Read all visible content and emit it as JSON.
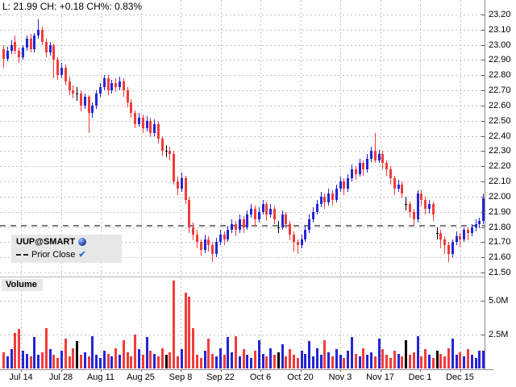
{
  "quote": {
    "text": "L: 21.99 CH: +0.18 CH%: 0.83%"
  },
  "legend": {
    "symbol": "UUP@SMART",
    "globe_icon": "globe-icon",
    "prior_close_label": "Prior Close",
    "checkmark": "✔"
  },
  "volume_label": "Volume",
  "colors": {
    "up": "#2326d6",
    "down": "#f23c3a",
    "neutral": "#000000",
    "grid": "#c4c4c4",
    "prior_close_line": "#7a7a7a",
    "axis": "#8c8c8c",
    "legend_bg": "#e7e7e7",
    "text": "#000000"
  },
  "chart_data": {
    "type": "candlestick_with_volume",
    "symbol": "UUP@SMART",
    "last": 21.99,
    "change": 0.18,
    "change_pct": 0.83,
    "prior_close": 21.81,
    "price_axis_ticks": [
      "23.20",
      "23.10",
      "23.00",
      "22.90",
      "22.80",
      "22.70",
      "22.60",
      "22.50",
      "22.40",
      "22.30",
      "22.20",
      "22.10",
      "22.00",
      "21.90",
      "21.80",
      "21.70",
      "21.60",
      "21.50"
    ],
    "price_ylim": [
      21.5,
      23.2
    ],
    "volume_axis_ticks": [
      "5.0M",
      "2.5M"
    ],
    "volume_tick_values": [
      5.0,
      2.5
    ],
    "date_ticks": [
      "Jul 14",
      "Jul 28",
      "Aug 11",
      "Aug 25",
      "Sep 8",
      "Sep 22",
      "Oct 6",
      "Oct 20",
      "Nov 3",
      "Nov 17",
      "Dec 1",
      "Dec 15"
    ],
    "grid": true,
    "legend_position": "left-inside",
    "candles_note": "array of [open, high, low, close, volume_millions] per trading day, Jul-Dec",
    "candles": [
      [
        22.97,
        23.0,
        22.85,
        22.91,
        1.2
      ],
      [
        22.91,
        22.99,
        22.89,
        22.96,
        0.9
      ],
      [
        22.96,
        23.03,
        22.94,
        23.0,
        1.4
      ],
      [
        23.02,
        23.06,
        22.94,
        22.96,
        2.6
      ],
      [
        22.96,
        22.98,
        22.88,
        22.92,
        2.9
      ],
      [
        22.92,
        23.0,
        22.9,
        22.98,
        1.3
      ],
      [
        22.98,
        23.06,
        22.96,
        23.04,
        1.1
      ],
      [
        23.04,
        23.07,
        22.95,
        22.97,
        0.9
      ],
      [
        22.97,
        23.08,
        22.95,
        23.06,
        2.3
      ],
      [
        23.06,
        23.17,
        23.04,
        23.1,
        1.0
      ],
      [
        23.1,
        23.12,
        23.0,
        23.02,
        1.2
      ],
      [
        23.02,
        23.04,
        22.92,
        22.95,
        3.0
      ],
      [
        22.95,
        23.02,
        22.93,
        23.0,
        1.4
      ],
      [
        23.0,
        23.01,
        22.78,
        22.9,
        1.0
      ],
      [
        22.9,
        22.92,
        22.77,
        22.8,
        0.8
      ],
      [
        22.8,
        22.88,
        22.78,
        22.85,
        1.3
      ],
      [
        22.85,
        22.87,
        22.73,
        22.76,
        2.2
      ],
      [
        22.76,
        22.79,
        22.67,
        22.7,
        0.9
      ],
      [
        22.7,
        22.73,
        22.65,
        22.68,
        1.5
      ],
      [
        22.68,
        22.72,
        22.63,
        22.68,
        2.0
      ],
      [
        22.68,
        22.7,
        22.56,
        22.6,
        1.0
      ],
      [
        22.6,
        22.68,
        22.58,
        22.66,
        1.2
      ],
      [
        22.66,
        22.67,
        22.42,
        22.55,
        0.9
      ],
      [
        22.55,
        22.62,
        22.52,
        22.6,
        2.4
      ],
      [
        22.6,
        22.7,
        22.58,
        22.68,
        1.0
      ],
      [
        22.68,
        22.75,
        22.66,
        22.72,
        0.8
      ],
      [
        22.72,
        22.8,
        22.7,
        22.78,
        1.3
      ],
      [
        22.78,
        22.8,
        22.67,
        22.7,
        1.1
      ],
      [
        22.7,
        22.77,
        22.68,
        22.75,
        0.9
      ],
      [
        22.75,
        22.78,
        22.69,
        22.72,
        1.5
      ],
      [
        22.72,
        22.79,
        22.7,
        22.76,
        1.0
      ],
      [
        22.76,
        22.78,
        22.66,
        22.7,
        2.1
      ],
      [
        22.7,
        22.72,
        22.59,
        22.62,
        1.2
      ],
      [
        22.62,
        22.64,
        22.52,
        22.55,
        0.9
      ],
      [
        22.55,
        22.57,
        22.45,
        22.48,
        2.5
      ],
      [
        22.48,
        22.55,
        22.46,
        22.52,
        1.4
      ],
      [
        22.52,
        22.54,
        22.42,
        22.45,
        1.0
      ],
      [
        22.45,
        22.53,
        22.43,
        22.5,
        2.3
      ],
      [
        22.5,
        22.52,
        22.39,
        22.42,
        1.3
      ],
      [
        22.42,
        22.51,
        22.4,
        22.48,
        1.1
      ],
      [
        22.48,
        22.5,
        22.35,
        22.38,
        0.9
      ],
      [
        22.38,
        22.4,
        22.27,
        22.3,
        1.5
      ],
      [
        22.3,
        22.34,
        22.26,
        22.3,
        1.0
      ],
      [
        22.3,
        22.33,
        22.24,
        22.28,
        1.2
      ],
      [
        22.28,
        22.3,
        22.08,
        22.1,
        6.5
      ],
      [
        22.1,
        22.13,
        22.01,
        22.05,
        0.9
      ],
      [
        22.05,
        22.16,
        22.03,
        22.12,
        1.4
      ],
      [
        22.12,
        22.14,
        21.95,
        21.98,
        5.6
      ],
      [
        21.98,
        22.0,
        21.76,
        21.8,
        5.3
      ],
      [
        21.8,
        21.83,
        21.71,
        21.75,
        3.0
      ],
      [
        21.75,
        21.78,
        21.66,
        21.7,
        1.0
      ],
      [
        21.7,
        21.72,
        21.61,
        21.65,
        0.8
      ],
      [
        21.65,
        21.75,
        21.63,
        21.72,
        1.3
      ],
      [
        21.72,
        21.74,
        21.64,
        21.68,
        2.2
      ],
      [
        21.68,
        21.7,
        21.57,
        21.62,
        1.1
      ],
      [
        21.62,
        21.73,
        21.6,
        21.7,
        0.9
      ],
      [
        21.7,
        21.78,
        21.68,
        21.75,
        1.5
      ],
      [
        21.75,
        21.77,
        21.68,
        21.72,
        1.0
      ],
      [
        21.72,
        21.81,
        21.7,
        21.78,
        2.3
      ],
      [
        21.78,
        21.85,
        21.76,
        21.82,
        1.2
      ],
      [
        21.82,
        21.84,
        21.74,
        21.78,
        2.4
      ],
      [
        21.78,
        21.88,
        21.76,
        21.85,
        0.9
      ],
      [
        21.85,
        21.87,
        21.76,
        21.8,
        1.4
      ],
      [
        21.8,
        21.91,
        21.78,
        21.88,
        1.0
      ],
      [
        21.88,
        21.95,
        21.86,
        21.92,
        0.8
      ],
      [
        21.92,
        21.94,
        21.81,
        21.85,
        1.3
      ],
      [
        21.85,
        21.93,
        21.83,
        21.9,
        2.1
      ],
      [
        21.9,
        21.98,
        21.88,
        21.95,
        1.1
      ],
      [
        21.95,
        21.97,
        21.84,
        21.88,
        0.9
      ],
      [
        21.88,
        21.95,
        21.86,
        21.92,
        1.5
      ],
      [
        21.92,
        21.94,
        21.82,
        21.85,
        1.0
      ],
      [
        21.8,
        21.84,
        21.76,
        21.8,
        1.2
      ],
      [
        21.8,
        21.91,
        21.78,
        21.88,
        1.8
      ],
      [
        21.88,
        21.9,
        21.79,
        21.82,
        0.9
      ],
      [
        21.82,
        21.84,
        21.71,
        21.75,
        1.4
      ],
      [
        21.75,
        21.77,
        21.64,
        21.7,
        1.0
      ],
      [
        21.7,
        21.72,
        21.62,
        21.68,
        0.8
      ],
      [
        21.68,
        21.75,
        21.66,
        21.72,
        1.3
      ],
      [
        21.72,
        21.81,
        21.7,
        21.78,
        1.1
      ],
      [
        21.78,
        21.88,
        21.76,
        21.85,
        2.0
      ],
      [
        21.85,
        21.93,
        21.83,
        21.9,
        0.9
      ],
      [
        21.9,
        21.98,
        21.88,
        21.95,
        1.5
      ],
      [
        21.95,
        22.03,
        21.93,
        22.0,
        1.0
      ],
      [
        22.0,
        22.02,
        21.92,
        21.96,
        2.1
      ],
      [
        21.96,
        22.05,
        21.94,
        22.02,
        1.2
      ],
      [
        22.02,
        22.04,
        21.94,
        21.98,
        0.9
      ],
      [
        21.98,
        22.08,
        21.96,
        22.05,
        1.4
      ],
      [
        22.05,
        22.13,
        22.03,
        22.1,
        1.0
      ],
      [
        22.1,
        22.12,
        22.01,
        22.05,
        0.8
      ],
      [
        22.05,
        22.15,
        22.03,
        22.12,
        1.3
      ],
      [
        22.12,
        22.21,
        22.1,
        22.18,
        2.3
      ],
      [
        22.18,
        22.2,
        22.11,
        22.15,
        1.1
      ],
      [
        22.15,
        22.25,
        22.13,
        22.22,
        0.9
      ],
      [
        22.22,
        22.24,
        22.14,
        22.18,
        1.5
      ],
      [
        22.18,
        22.28,
        22.16,
        22.25,
        1.0
      ],
      [
        22.25,
        22.33,
        22.23,
        22.3,
        1.2
      ],
      [
        22.3,
        22.42,
        22.22,
        22.24,
        0.9
      ],
      [
        22.24,
        22.31,
        22.22,
        22.28,
        2.2
      ],
      [
        22.28,
        22.3,
        22.18,
        22.22,
        1.4
      ],
      [
        22.22,
        22.24,
        22.14,
        22.18,
        1.0
      ],
      [
        22.18,
        22.2,
        22.08,
        22.12,
        0.8
      ],
      [
        22.12,
        22.14,
        22.01,
        22.05,
        1.3
      ],
      [
        22.05,
        22.11,
        22.03,
        22.08,
        1.1
      ],
      [
        22.08,
        22.1,
        21.99,
        22.02,
        0.9
      ],
      [
        21.95,
        22.0,
        21.91,
        21.95,
        2.1
      ],
      [
        21.95,
        21.97,
        21.86,
        21.9,
        1.0
      ],
      [
        21.9,
        21.92,
        21.81,
        21.85,
        1.2
      ],
      [
        21.85,
        22.04,
        21.83,
        22.02,
        2.4
      ],
      [
        22.02,
        22.04,
        21.94,
        21.98,
        0.9
      ],
      [
        21.98,
        22.0,
        21.88,
        21.92,
        1.4
      ],
      [
        21.92,
        21.98,
        21.89,
        21.95,
        1.0
      ],
      [
        21.95,
        21.97,
        21.84,
        21.88,
        0.8
      ],
      [
        21.76,
        21.8,
        21.72,
        21.76,
        1.3
      ],
      [
        21.76,
        21.78,
        21.66,
        21.72,
        1.1
      ],
      [
        21.72,
        21.74,
        21.62,
        21.68,
        0.9
      ],
      [
        21.68,
        21.7,
        21.57,
        21.62,
        1.5
      ],
      [
        21.62,
        21.72,
        21.6,
        21.7,
        2.2
      ],
      [
        21.7,
        21.77,
        21.68,
        21.74,
        1.0
      ],
      [
        21.74,
        21.76,
        21.67,
        21.72,
        1.2
      ],
      [
        21.72,
        21.8,
        21.7,
        21.78,
        0.9
      ],
      [
        21.78,
        21.8,
        21.71,
        21.76,
        1.4
      ],
      [
        21.76,
        21.82,
        21.74,
        21.8,
        1.0
      ],
      [
        21.8,
        21.85,
        21.77,
        21.82,
        0.8
      ],
      [
        21.82,
        21.86,
        21.79,
        21.84,
        1.3
      ],
      [
        21.84,
        22.02,
        21.82,
        21.99,
        1.3
      ]
    ]
  }
}
